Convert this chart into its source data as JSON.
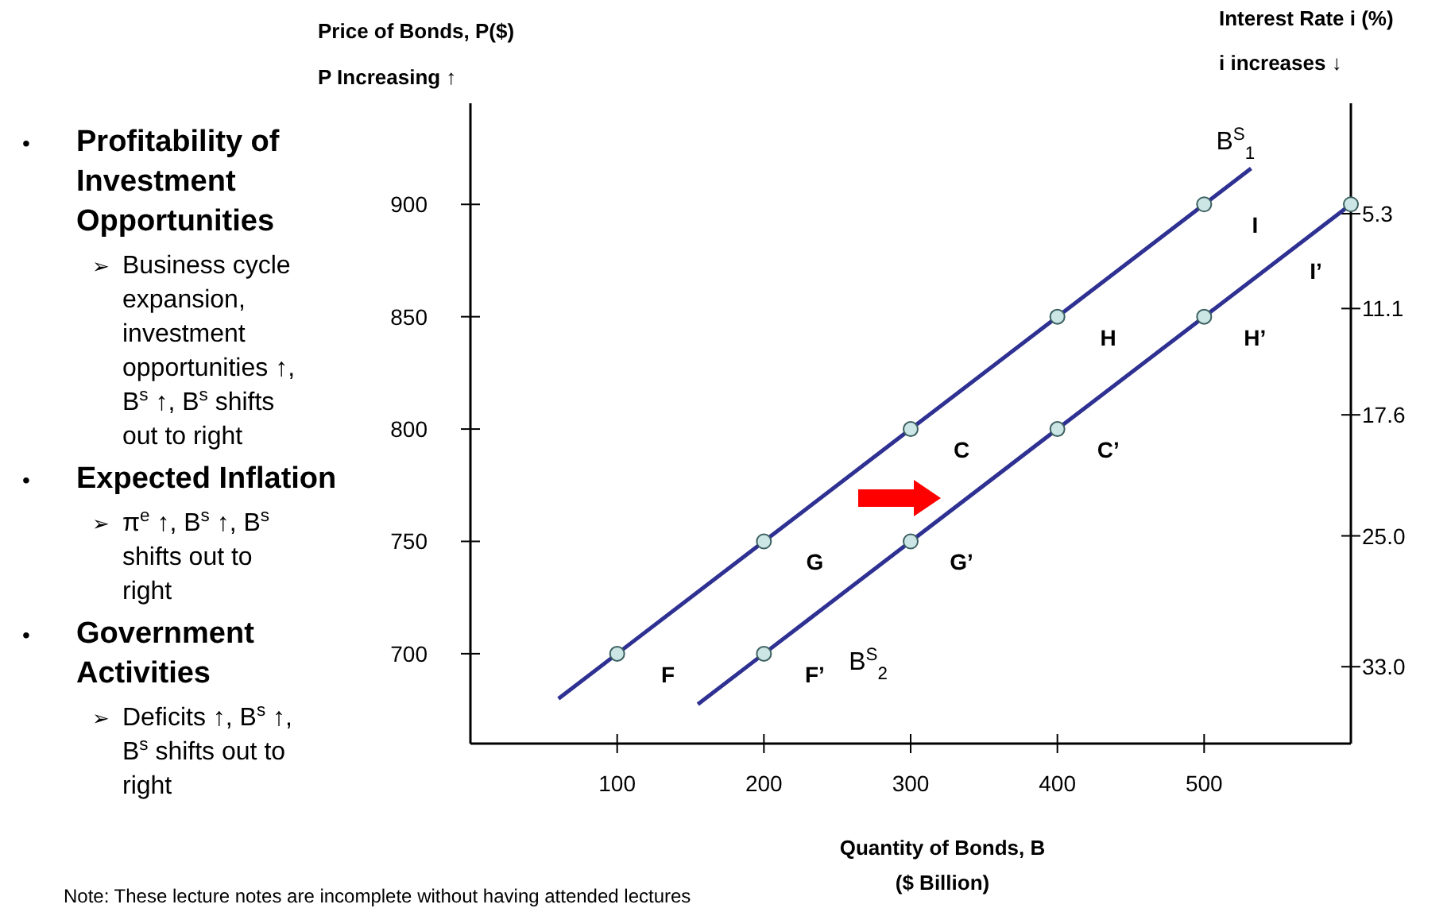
{
  "chart_data": {
    "type": "line",
    "ylabel": "Price of Bonds, P($)",
    "y2label": "Interest Rate i (%)",
    "xlabel": "Quantity of Bonds, B\n($ Billion)",
    "xlim": [
      0,
      600
    ],
    "xticks": [
      100,
      200,
      300,
      400,
      500
    ],
    "ylim": [
      660,
      945
    ],
    "yticks": [
      700,
      750,
      800,
      850,
      900
    ],
    "y2lim": [
      37.7,
      -1.45
    ],
    "y2ticks": [
      {
        "value": 5.3,
        "label": "5.3"
      },
      {
        "value": 11.1,
        "label": "11.1"
      },
      {
        "value": 17.6,
        "label": "17.6"
      },
      {
        "value": 25,
        "label": "25.0"
      },
      {
        "value": 33,
        "label": "33.0"
      }
    ],
    "grid": false,
    "series": [
      {
        "name": "B$^{S}$$_{1}$",
        "color": "#2e3192",
        "x": [
          60,
          100,
          200,
          300,
          400,
          500,
          532
        ],
        "values": [
          680,
          700,
          750,
          800,
          850,
          900,
          916
        ],
        "marker": "none"
      },
      {
        "name": "B$^{S}$$_{2}$",
        "color": "#2e3192",
        "x": [
          155,
          200,
          300,
          400,
          500,
          600
        ],
        "values": [
          677.5,
          700,
          750,
          800,
          850,
          900
        ],
        "marker": "none"
      },
      {
        "type": "scatter",
        "color": "#cce6e6",
        "x": [
          100,
          200,
          300,
          400,
          500,
          200,
          300,
          400,
          500,
          600
        ],
        "values": [
          700,
          750,
          800,
          850,
          900,
          700,
          750,
          800,
          850,
          900
        ],
        "marker": "circle"
      }
    ],
    "annotations": [
      "• Profitability of Investment Opportunities",
      "➢ Business cycle expansion, investment opportunities ↑, B$^{s}$ ↑, B$^{s}$ shifts out to right",
      "• Expected Inflation",
      "➢ π$^{e}$ ↑, B$^{s}$ ↑, B$^{s}$ shifts out to right",
      "• Government Activities",
      "➢ Deficits ↑, B$^{s}$ ↑, B$^{s}$ shifts out to right",
      "P Increasing ↑",
      "i increases ↓",
      "Note: These lecture notes are incomplete without having attended lectures",
      {
        "text": "F",
        "x": 100,
        "y": 700
      },
      {
        "text": "G",
        "x": 200,
        "y": 750
      },
      {
        "text": "C",
        "x": 300,
        "y": 800
      },
      {
        "text": "H",
        "x": 400,
        "y": 850
      },
      {
        "text": "I",
        "x": 500,
        "y": 900
      },
      {
        "text": "F’",
        "x": 200,
        "y": 700
      },
      {
        "text": "G’",
        "x": 300,
        "y": 750
      },
      {
        "text": "C’",
        "x": 400,
        "y": 800
      },
      {
        "text": "H’",
        "x": 500,
        "y": 850
      },
      {
        "text": "I’",
        "x": 600,
        "y": 900
      }
    ]
  }
}
